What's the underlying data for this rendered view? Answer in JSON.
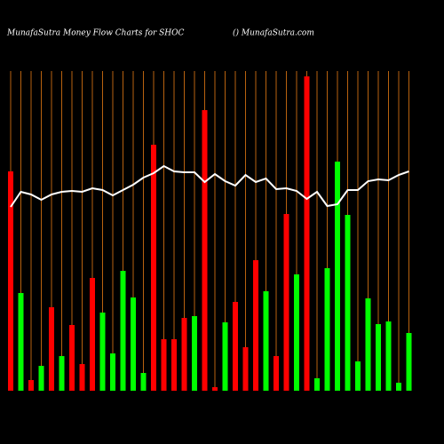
{
  "chart_data": {
    "type": "bar-line",
    "title": "MunafaSutra  Money Flow  Charts for SHOC",
    "subtitle": "() MunafaSutra.com",
    "grid_color": "#b8620f",
    "ylim": [
      0,
      360
    ],
    "bars": {
      "values": [
        247,
        110,
        12,
        28,
        94,
        39,
        74,
        30,
        127,
        88,
        42,
        135,
        105,
        20,
        277,
        58,
        58,
        82,
        84,
        316,
        4,
        77,
        100,
        49,
        147,
        112,
        39,
        199,
        131,
        354,
        14,
        138,
        258,
        198,
        33,
        104,
        75,
        78,
        9,
        65
      ],
      "colors": [
        "#ff0000",
        "#00ff00",
        "#ff0000",
        "#00ff00",
        "#ff0000",
        "#00ff00",
        "#ff0000",
        "#ff0000",
        "#ff0000",
        "#00ff00",
        "#00ff00",
        "#00ff00",
        "#00ff00",
        "#00ff00",
        "#ff0000",
        "#ff0000",
        "#ff0000",
        "#ff0000",
        "#00ff00",
        "#ff0000",
        "#ff0000",
        "#00ff00",
        "#ff0000",
        "#ff0000",
        "#ff0000",
        "#00ff00",
        "#ff0000",
        "#ff0000",
        "#00ff00",
        "#ff0000",
        "#00ff00",
        "#00ff00",
        "#00ff00",
        "#00ff00",
        "#00ff00",
        "#00ff00",
        "#00ff00",
        "#00ff00",
        "#00ff00",
        "#00ff00"
      ]
    },
    "line": {
      "color": "#ffffff",
      "values": [
        207,
        224,
        221,
        215,
        221,
        224,
        225,
        224,
        228,
        226,
        220,
        226,
        232,
        240,
        245,
        253,
        247,
        246,
        246,
        235,
        244,
        236,
        231,
        243,
        235,
        239,
        227,
        228,
        225,
        216,
        224,
        208,
        210,
        226,
        226,
        236,
        238,
        237,
        243,
        247
      ]
    }
  }
}
